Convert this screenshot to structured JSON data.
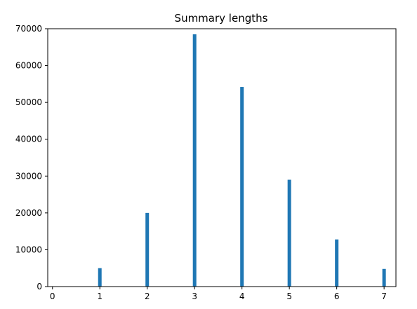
{
  "chart_data": {
    "type": "bar",
    "title": "Summary lengths",
    "xlabel": "",
    "ylabel": "",
    "x": [
      1,
      2,
      3,
      4,
      5,
      6,
      7
    ],
    "values": [
      5000,
      20000,
      68500,
      54200,
      29000,
      12800,
      4800
    ],
    "xlim": [
      -0.1,
      7.25
    ],
    "ylim": [
      0,
      70000
    ],
    "xticks": [
      0,
      1,
      2,
      3,
      4,
      5,
      6,
      7
    ],
    "yticks": [
      0,
      10000,
      20000,
      30000,
      40000,
      50000,
      60000,
      70000
    ],
    "bar_color": "#1f77b4",
    "grid": false,
    "legend": "none"
  }
}
